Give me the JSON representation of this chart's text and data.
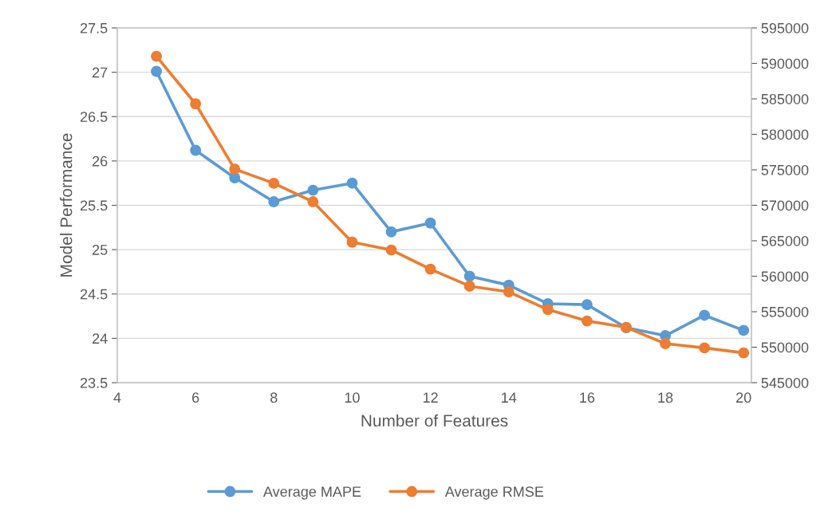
{
  "chart_data": {
    "type": "line",
    "xlabel": "Number of Features",
    "ylabel": "Model Performance",
    "xlim": [
      4,
      20.2
    ],
    "xticks": [
      4,
      6,
      8,
      10,
      12,
      14,
      16,
      18,
      20
    ],
    "ylim": [
      23.5,
      27.5
    ],
    "yticks": [
      23.5,
      24,
      24.5,
      25,
      25.5,
      26,
      26.5,
      27,
      27.5
    ],
    "y2lim": [
      545000,
      595000
    ],
    "y2ticks": [
      545000,
      550000,
      555000,
      560000,
      565000,
      570000,
      575000,
      580000,
      585000,
      590000,
      595000
    ],
    "x": [
      5,
      6,
      7,
      8,
      9,
      10,
      11,
      12,
      13,
      14,
      15,
      16,
      17,
      18,
      19,
      20
    ],
    "series": [
      {
        "name": "Average MAPE",
        "color": "#5b9bd5",
        "values": [
          27.01,
          26.12,
          25.81,
          25.54,
          25.67,
          25.75,
          25.2,
          25.3,
          24.7,
          24.6,
          24.39,
          24.38,
          24.12,
          24.03,
          24.26,
          24.09
        ]
      },
      {
        "name": "Average RMSE",
        "color": "#ed7d31",
        "axis": "y2",
        "values": [
          591000,
          584300,
          575100,
          573100,
          570500,
          564800,
          563700,
          561000,
          558600,
          557800,
          555300,
          553700,
          552800,
          550500,
          549900,
          549200
        ]
      }
    ],
    "grid": "y",
    "legend": "bottom",
    "marker": "circle",
    "line_style": "solid"
  }
}
